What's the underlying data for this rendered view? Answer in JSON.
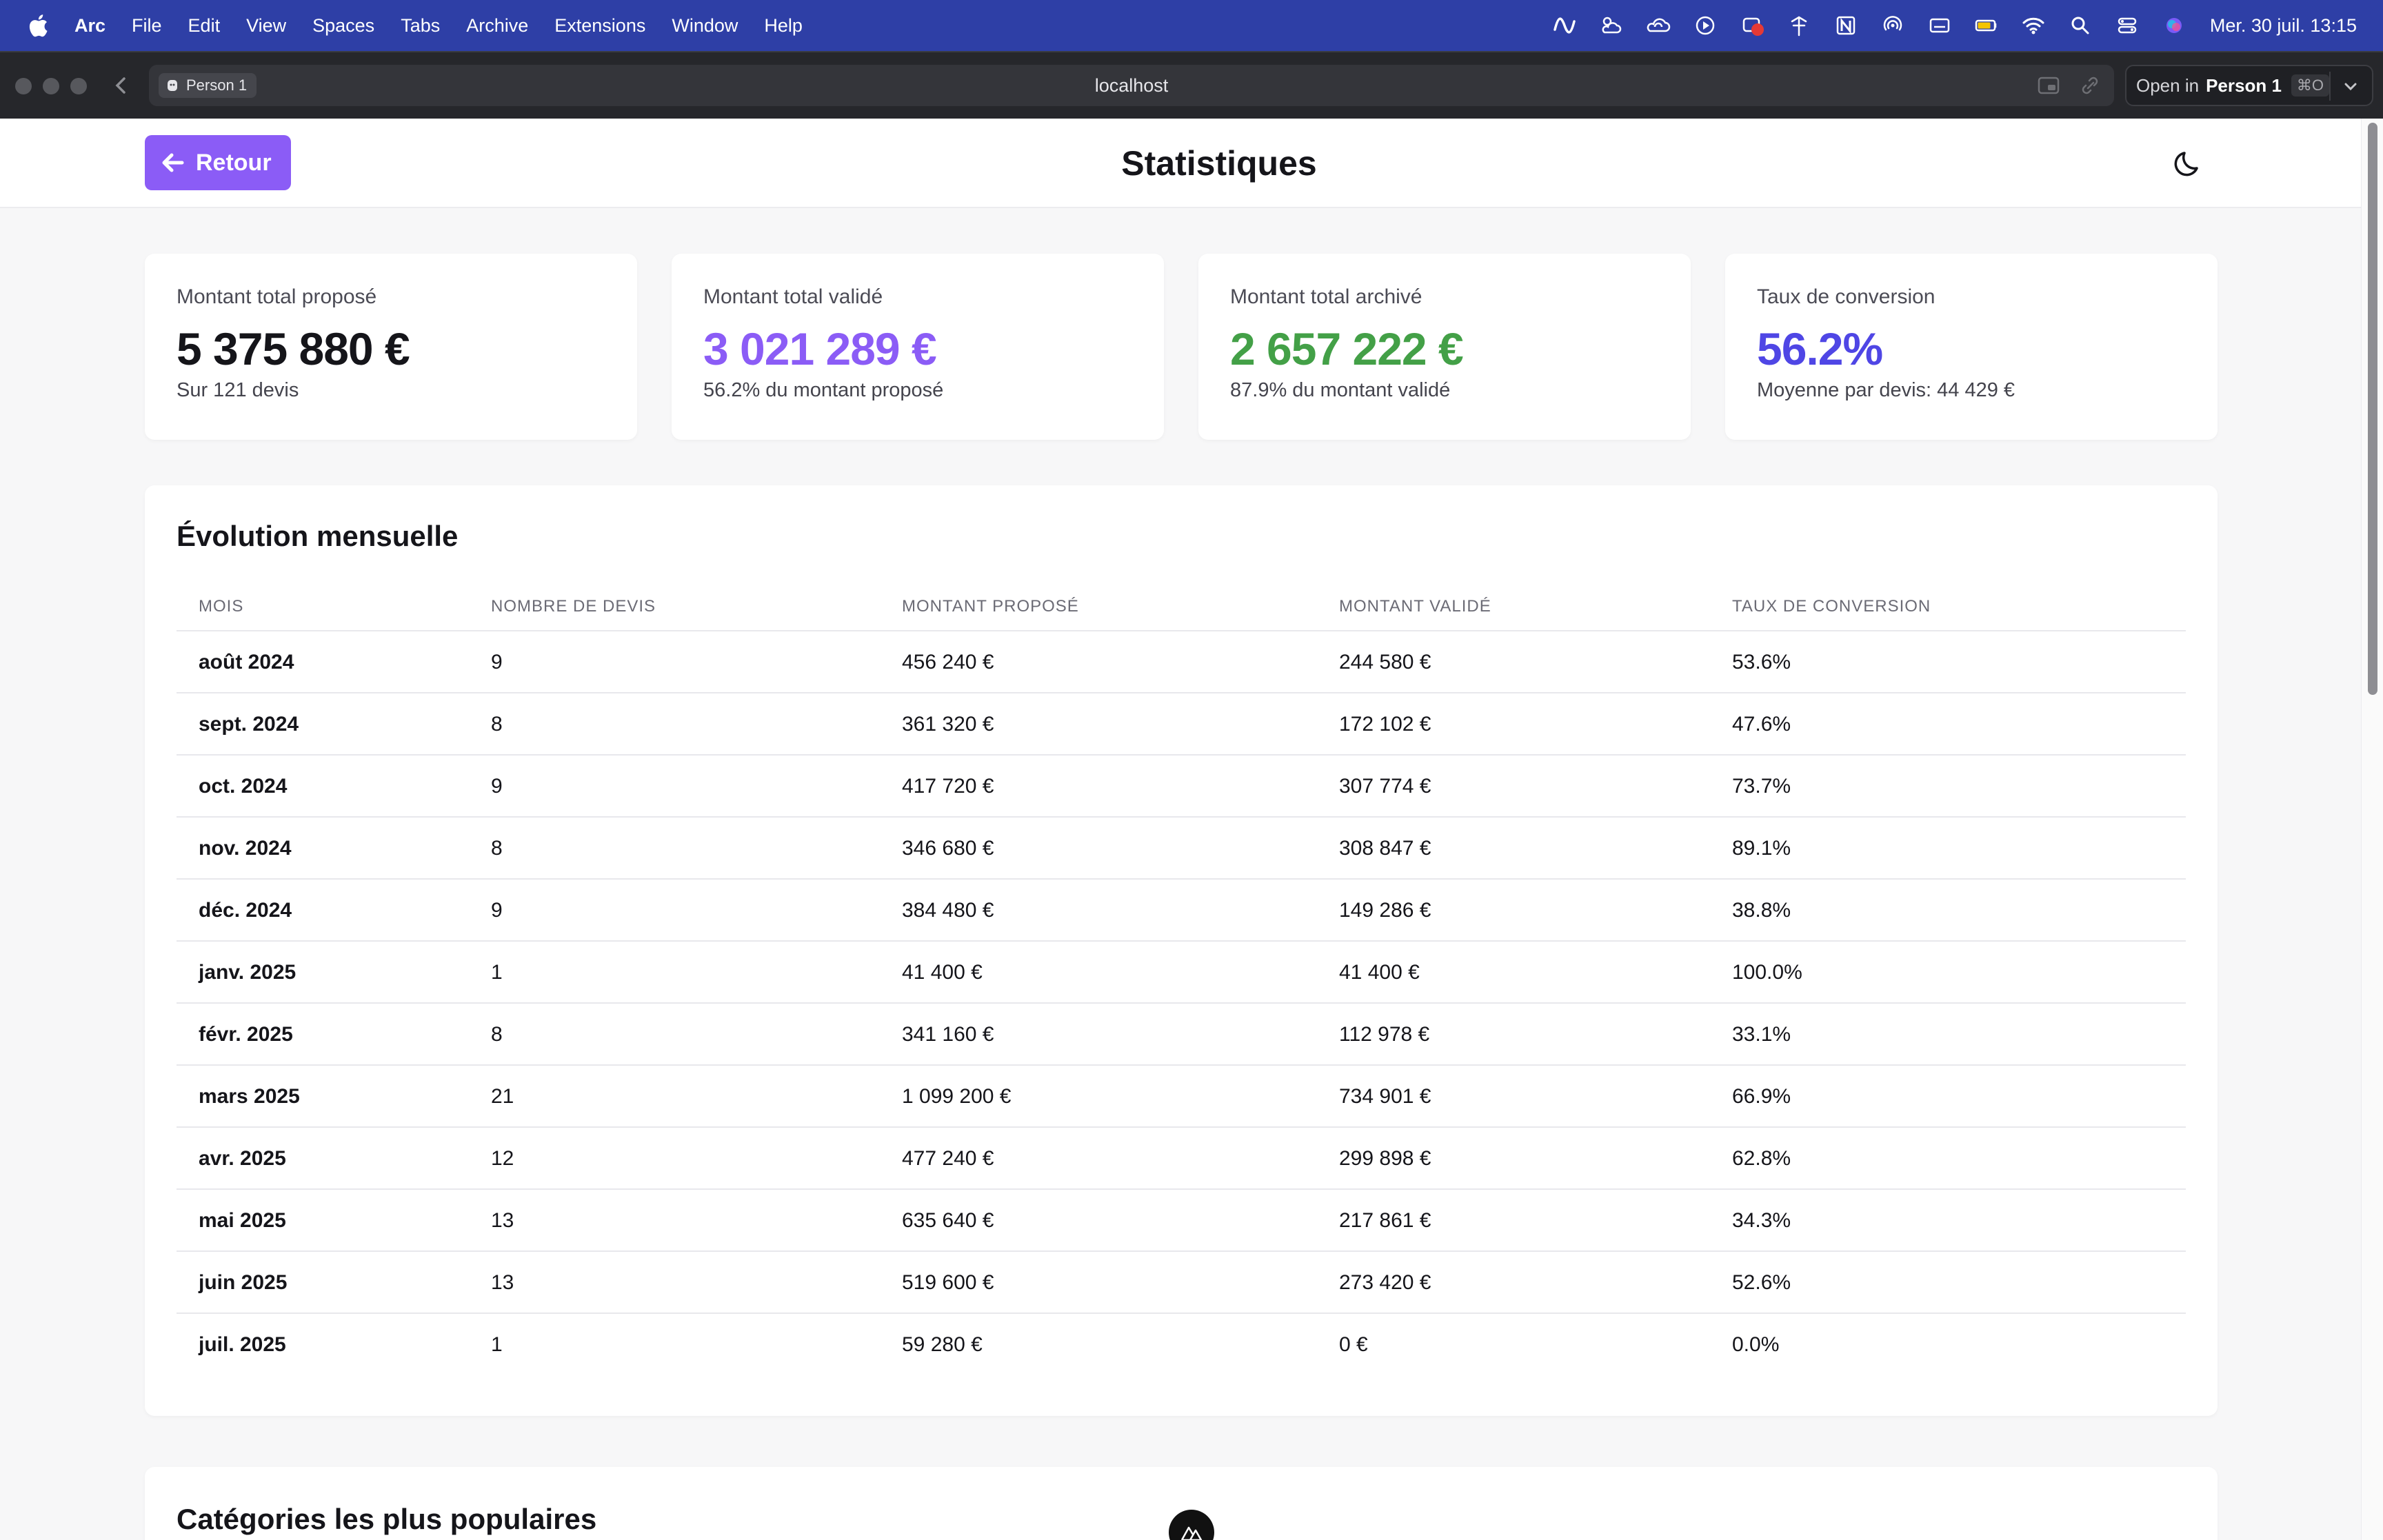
{
  "menubar": {
    "items": [
      "Arc",
      "File",
      "Edit",
      "View",
      "Spaces",
      "Tabs",
      "Archive",
      "Extensions",
      "Window",
      "Help"
    ],
    "status_icons": [
      "activity-icon",
      "weather-icon",
      "cloud-sync-icon",
      "play-circle-icon",
      "notification-badge-icon",
      "wind-icon",
      "notion-icon",
      "airdrop-icon",
      "keyboard-icon",
      "battery-icon",
      "wifi-icon",
      "search-icon",
      "control-center-icon",
      "siri-icon"
    ],
    "clock": "Mer. 30 juil.  13:15"
  },
  "browser": {
    "profile": "Person 1",
    "url": "localhost",
    "open_in_prefix": "Open in",
    "open_in_profile": "Person 1",
    "open_in_shortcut": "⌘O"
  },
  "header": {
    "back_label": "Retour",
    "title": "Statistiques"
  },
  "kpis": [
    {
      "label": "Montant total proposé",
      "value": "5 375 880 €",
      "sub": "Sur 121 devis",
      "color": "#15151a"
    },
    {
      "label": "Montant total validé",
      "value": "3 021 289 €",
      "sub": "56.2% du montant proposé",
      "color": "#8b5cf6"
    },
    {
      "label": "Montant total archivé",
      "value": "2 657 222 €",
      "sub": "87.9% du montant validé",
      "color": "#43a047"
    },
    {
      "label": "Taux de conversion",
      "value": "56.2%",
      "sub": "Moyenne par devis: 44 429 €",
      "color": "#4f46e5"
    }
  ],
  "monthly": {
    "title": "Évolution mensuelle",
    "columns": [
      "MOIS",
      "NOMBRE DE DEVIS",
      "MONTANT PROPOSÉ",
      "MONTANT VALIDÉ",
      "TAUX DE CONVERSION"
    ],
    "rows": [
      [
        "août 2024",
        "9",
        "456 240 €",
        "244 580 €",
        "53.6%"
      ],
      [
        "sept. 2024",
        "8",
        "361 320 €",
        "172 102 €",
        "47.6%"
      ],
      [
        "oct. 2024",
        "9",
        "417 720 €",
        "307 774 €",
        "73.7%"
      ],
      [
        "nov. 2024",
        "8",
        "346 680 €",
        "308 847 €",
        "89.1%"
      ],
      [
        "déc. 2024",
        "9",
        "384 480 €",
        "149 286 €",
        "38.8%"
      ],
      [
        "janv. 2025",
        "1",
        "41 400 €",
        "41 400 €",
        "100.0%"
      ],
      [
        "févr. 2025",
        "8",
        "341 160 €",
        "112 978 €",
        "33.1%"
      ],
      [
        "mars 2025",
        "21",
        "1 099 200 €",
        "734 901 €",
        "66.9%"
      ],
      [
        "avr. 2025",
        "12",
        "477 240 €",
        "299 898 €",
        "62.8%"
      ],
      [
        "mai 2025",
        "13",
        "635 640 €",
        "217 861 €",
        "34.3%"
      ],
      [
        "juin 2025",
        "13",
        "519 600 €",
        "273 420 €",
        "52.6%"
      ],
      [
        "juil. 2025",
        "1",
        "59 280 €",
        "0 €",
        "0.0%"
      ]
    ]
  },
  "categories": {
    "title": "Catégories les plus populaires"
  }
}
